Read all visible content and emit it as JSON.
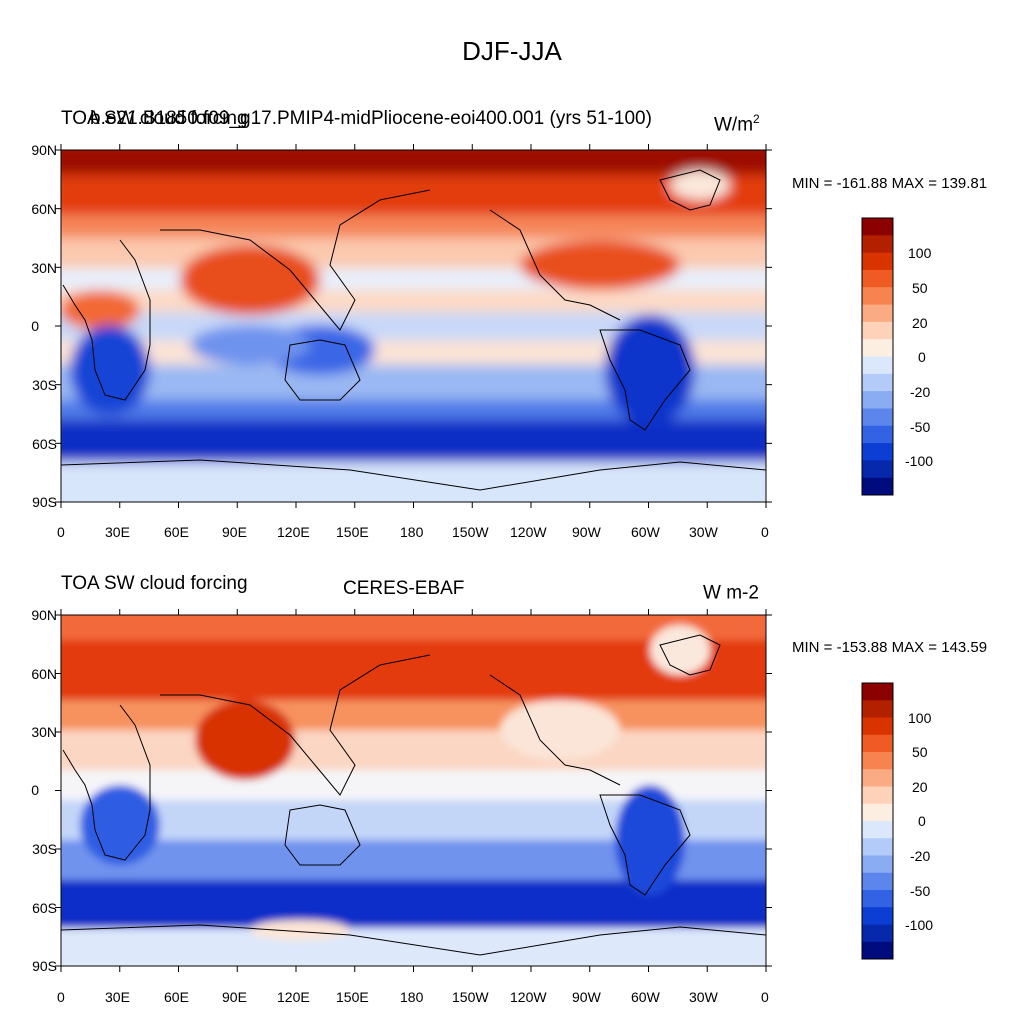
{
  "page": {
    "title": "DJF-JJA"
  },
  "panels": [
    {
      "left_title": "TOA SW cloud forcing",
      "center_title": "b.e21.B1850.f09_g17.PMIP4-midPliocene-eoi400.001 (yrs 51-100)",
      "units": "W/m",
      "units_sup": "2",
      "stats": "MIN = -161.88 MAX = 139.81"
    },
    {
      "left_title": "TOA SW cloud forcing",
      "center_title": "CERES-EBAF",
      "units": "W m-2",
      "units_sup": "",
      "stats": "MIN = -153.88 MAX = 143.59"
    }
  ],
  "axes": {
    "y_ticks": [
      "90N",
      "60N",
      "30N",
      "0",
      "30S",
      "60S",
      "90S"
    ],
    "x_ticks": [
      "0",
      "30E",
      "60E",
      "90E",
      "120E",
      "150E",
      "180",
      "150W",
      "120W",
      "90W",
      "60W",
      "30W",
      "0"
    ]
  },
  "colorbar": {
    "labels": [
      "100",
      "50",
      "20",
      "0",
      "-20",
      "-50",
      "-100"
    ],
    "colors": [
      "#8b0000",
      "#b22000",
      "#d93300",
      "#f05a23",
      "#f7844e",
      "#fbab83",
      "#fdd2b8",
      "#fdeee2",
      "#dbe8fb",
      "#b3cbf8",
      "#8aacf3",
      "#5d86ec",
      "#3362e4",
      "#0c3ed4",
      "#0628aa",
      "#000c7e"
    ]
  }
}
